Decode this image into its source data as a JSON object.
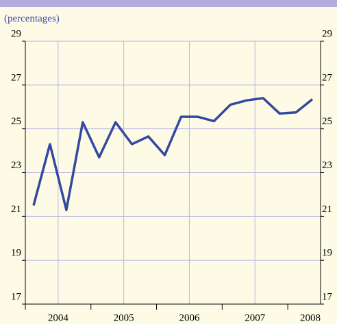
{
  "chart_data": {
    "type": "line",
    "subtitle": "(percentages)",
    "x": [
      2003.625,
      2003.875,
      2004.125,
      2004.375,
      2004.625,
      2004.875,
      2005.125,
      2005.375,
      2005.625,
      2005.875,
      2006.125,
      2006.375,
      2006.625,
      2006.875,
      2007.125,
      2007.375,
      2007.625,
      2007.875
    ],
    "series": [
      {
        "color": "#3448a0",
        "values": [
          21.5,
          24.3,
          21.3,
          25.3,
          23.7,
          25.3,
          24.3,
          24.65,
          23.8,
          25.55,
          25.55,
          25.35,
          26.1,
          26.3,
          26.4,
          25.7,
          25.75,
          26.35
        ]
      }
    ],
    "xlim": [
      2003.5,
      2008
    ],
    "xticks": [
      2004,
      2005,
      2006,
      2007,
      2008
    ],
    "ylim": [
      17,
      29
    ],
    "yticks": [
      17,
      19,
      21,
      23,
      25,
      27,
      29
    ],
    "grid": true
  }
}
